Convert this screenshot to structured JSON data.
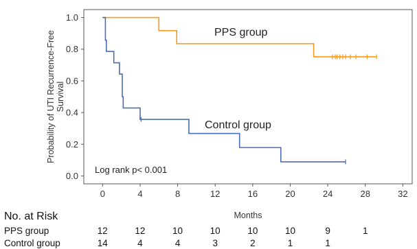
{
  "chart_data": {
    "type": "line",
    "subtype": "kaplan-meier",
    "title": "",
    "xlabel": "Months",
    "ylabel": "Probability of UTI Recurrence-Free Survival",
    "xlim": [
      -2,
      33
    ],
    "ylim": [
      -0.05,
      1.05
    ],
    "x_ticks": [
      0,
      4,
      8,
      12,
      16,
      20,
      24,
      28,
      32
    ],
    "y_ticks": [
      0.0,
      0.2,
      0.4,
      0.6,
      0.8,
      1.0
    ],
    "y_tick_labels": [
      "0.0",
      "0.2",
      "0.4",
      "0.6",
      "0.8",
      "1.0"
    ],
    "grid": false,
    "series": [
      {
        "name": "PPS group",
        "color": "#f59a1c",
        "steps": [
          [
            0,
            1.0
          ],
          [
            6,
            0.917
          ],
          [
            7.9,
            0.835
          ],
          [
            22.5,
            0.752
          ],
          [
            29.2,
            0.752
          ]
        ],
        "censored": [
          24.5,
          24.8,
          25.0,
          25.3,
          25.6,
          25.9,
          26.4,
          27.0,
          28.2,
          29.2
        ]
      },
      {
        "name": "Control group",
        "color": "#4a6bb8",
        "steps": [
          [
            0,
            1.0
          ],
          [
            0.3,
            0.857
          ],
          [
            0.4,
            0.786
          ],
          [
            1.2,
            0.714
          ],
          [
            1.8,
            0.643
          ],
          [
            2.1,
            0.5
          ],
          [
            2.2,
            0.429
          ],
          [
            4.0,
            0.357
          ],
          [
            9.2,
            0.268
          ],
          [
            14.6,
            0.179
          ],
          [
            19.0,
            0.089
          ],
          [
            25.9,
            0.089
          ]
        ],
        "censored": [
          4.1,
          25.9
        ]
      }
    ],
    "annotations": [
      "Log rank p< 0.001"
    ]
  },
  "risk_table": {
    "title": "No. at Risk",
    "rows": [
      {
        "label": "PPS group",
        "values": [
          "12",
          "12",
          "10",
          "10",
          "10",
          "10",
          "9",
          "1"
        ]
      },
      {
        "label": "Control group",
        "values": [
          "14",
          "4",
          "4",
          "3",
          "2",
          "1",
          "1"
        ]
      }
    ]
  }
}
